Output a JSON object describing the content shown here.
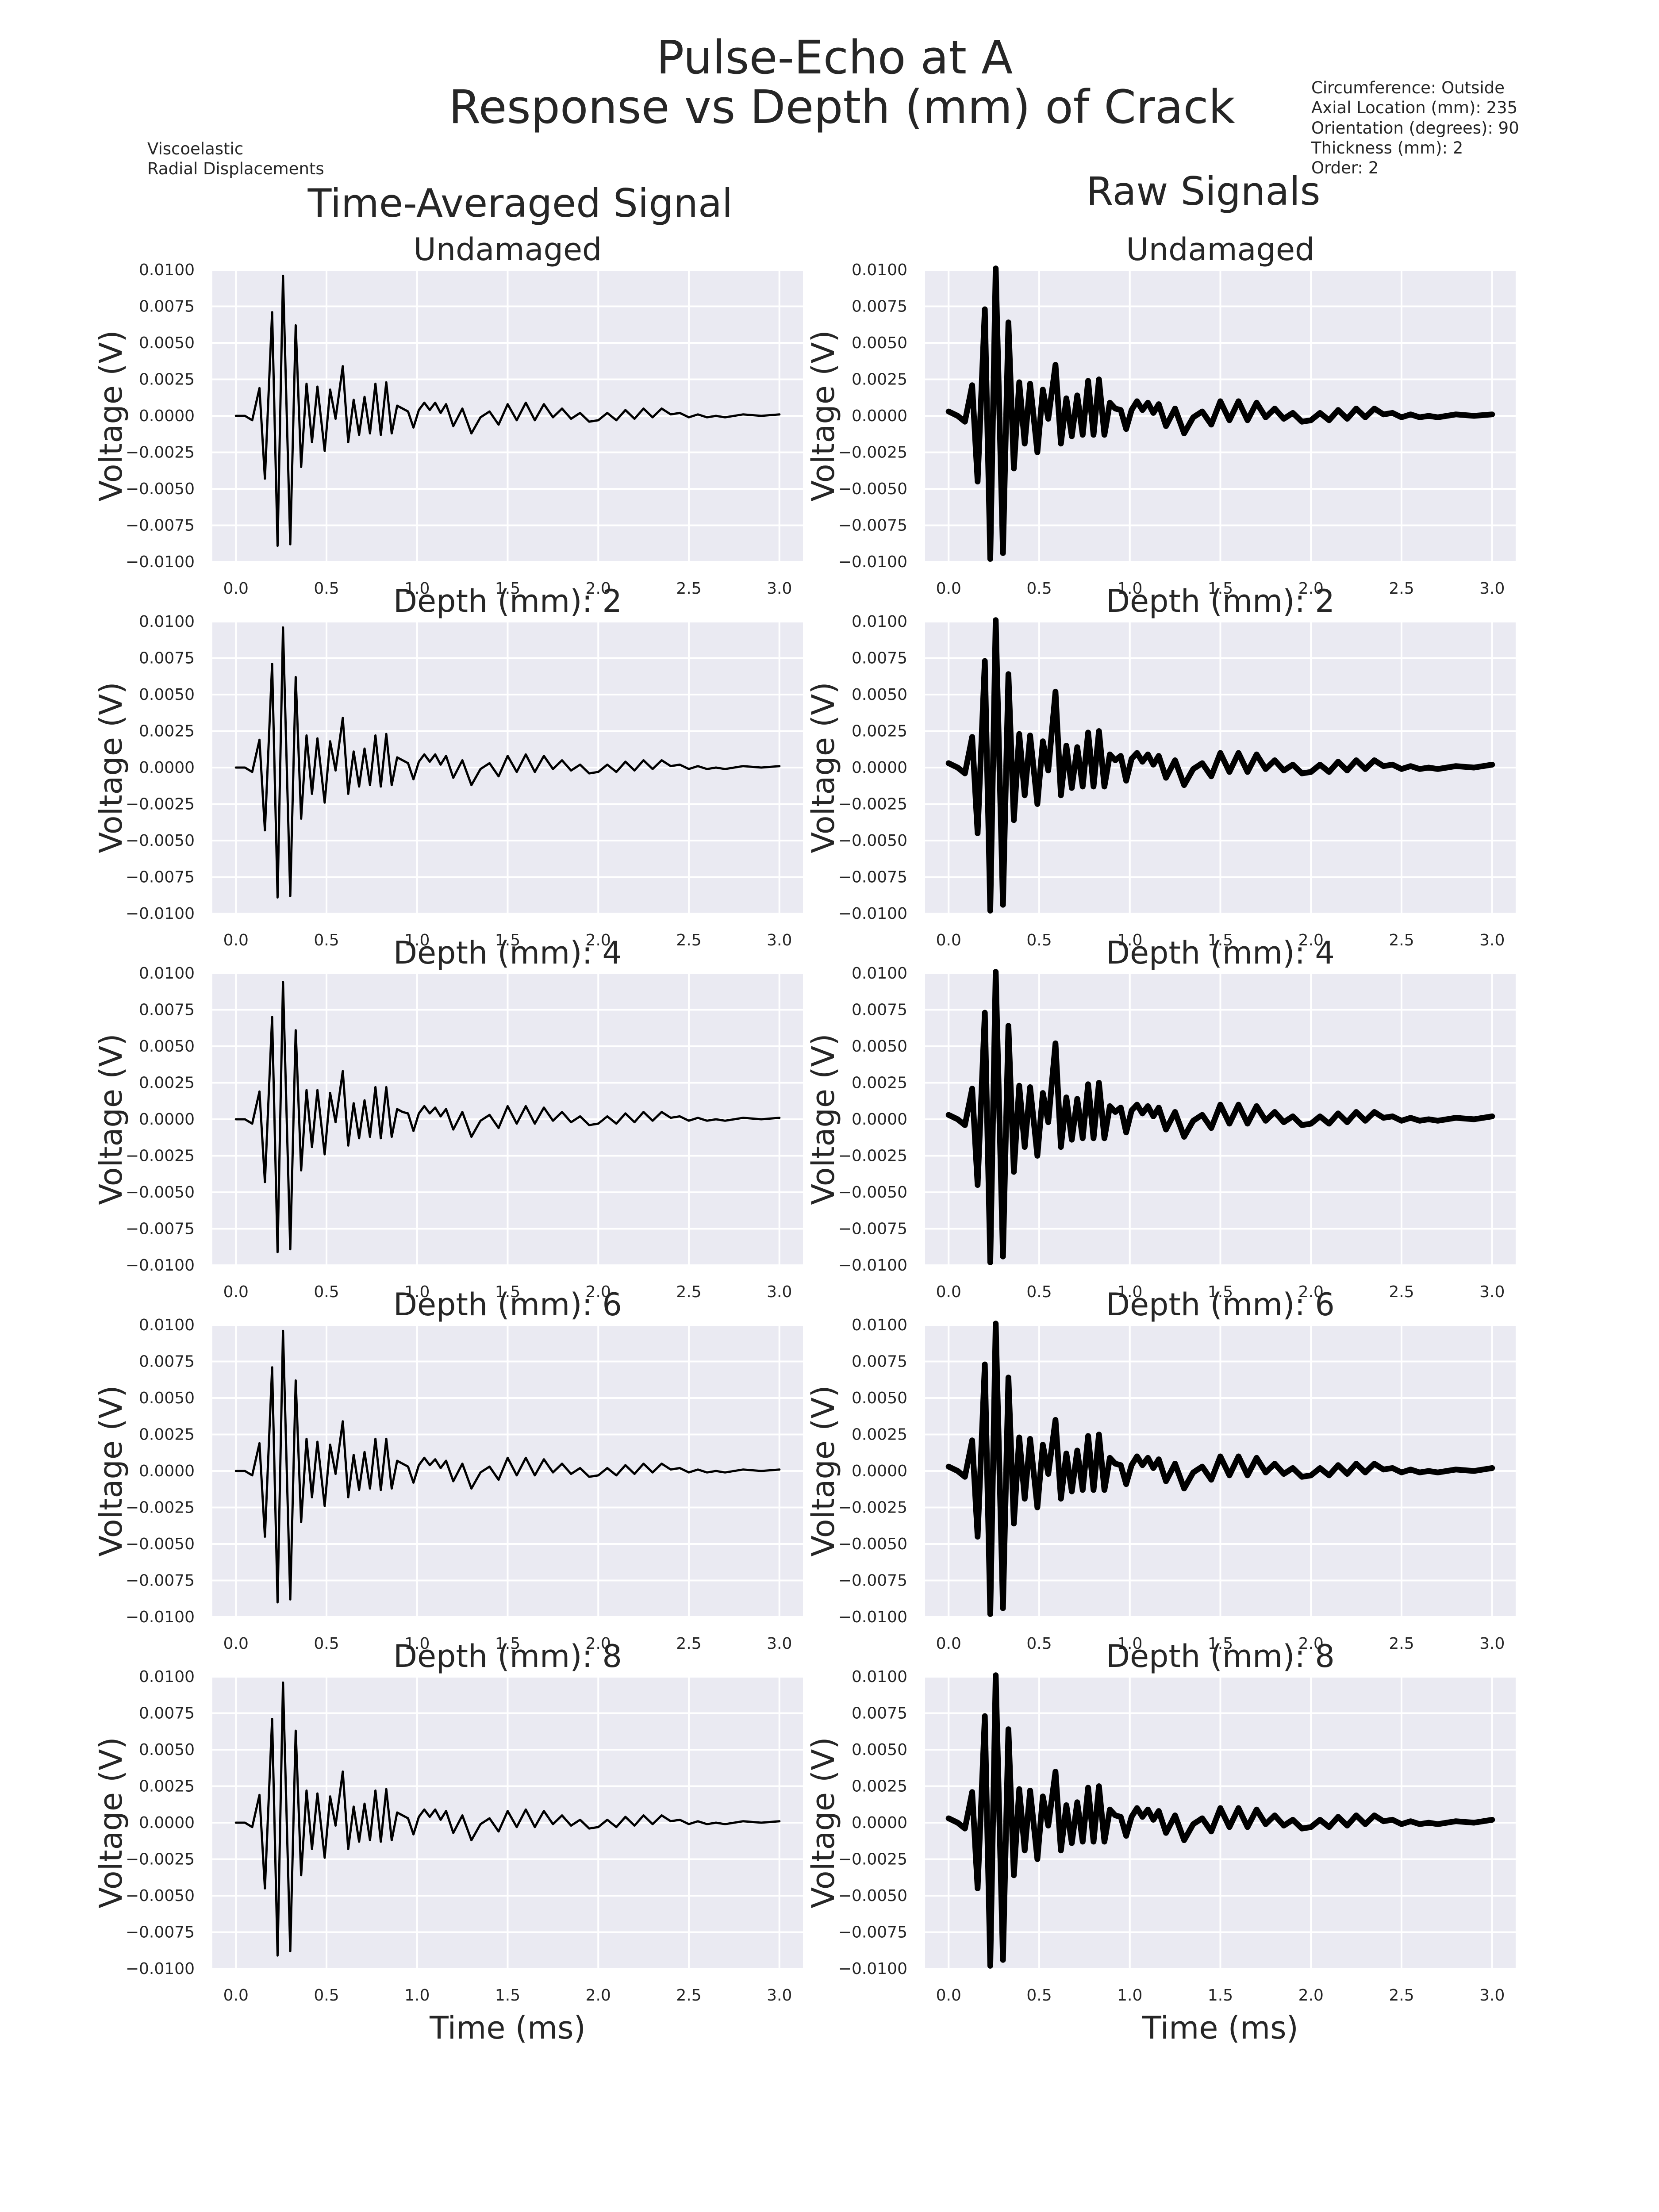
{
  "figure": {
    "title_line1": "Pulse-Echo at A",
    "title_line2": "Response vs Depth (mm) of Crack",
    "left_note": [
      "Viscoelastic",
      "Radial Displacements"
    ],
    "right_note": [
      "Circumference: Outside",
      "Axial Location (mm): 235",
      "Orientation (degrees): 90",
      "Thickness (mm): 2",
      "Order: 2"
    ],
    "columns": [
      {
        "title": "Time-Averaged Signal",
        "style": "thin"
      },
      {
        "title": "Raw Signals",
        "style": "thick"
      }
    ],
    "row_titles": [
      "Undamaged",
      "Depth (mm): 2",
      "Depth (mm): 4",
      "Depth (mm): 6",
      "Depth (mm): 8"
    ],
    "ylabel": "Voltage (V)",
    "xlabel": "Time (ms)",
    "x_ticks": [
      "0.0",
      "0.5",
      "1.0",
      "1.5",
      "2.0",
      "2.5",
      "3.0"
    ],
    "y_ticks": [
      "0.0100",
      "0.0075",
      "0.0050",
      "0.0025",
      "0.0000",
      "−0.0025",
      "−0.0050",
      "−0.0075",
      "−0.0100"
    ]
  },
  "chart_data": {
    "type": "line",
    "xlim": [
      -0.13,
      3.13
    ],
    "ylim": [
      -0.01,
      0.01
    ],
    "grid": true,
    "line_color": "#000000",
    "x": [
      0.0,
      0.05,
      0.09,
      0.13,
      0.16,
      0.2,
      0.23,
      0.26,
      0.3,
      0.33,
      0.36,
      0.39,
      0.42,
      0.45,
      0.49,
      0.52,
      0.55,
      0.59,
      0.62,
      0.65,
      0.68,
      0.71,
      0.74,
      0.77,
      0.8,
      0.83,
      0.86,
      0.89,
      0.92,
      0.95,
      0.98,
      1.01,
      1.04,
      1.07,
      1.1,
      1.13,
      1.16,
      1.2,
      1.25,
      1.3,
      1.35,
      1.4,
      1.45,
      1.5,
      1.55,
      1.6,
      1.65,
      1.7,
      1.75,
      1.8,
      1.85,
      1.9,
      1.95,
      2.0,
      2.05,
      2.1,
      2.15,
      2.2,
      2.25,
      2.3,
      2.35,
      2.4,
      2.45,
      2.5,
      2.55,
      2.6,
      2.65,
      2.7,
      2.8,
      2.9,
      3.0
    ],
    "series": [
      {
        "values": [
          0.0,
          0.0,
          -0.0003,
          0.0019,
          -0.0043,
          0.0071,
          -0.0089,
          0.0096,
          -0.0088,
          0.0062,
          -0.0035,
          0.0022,
          -0.0018,
          0.002,
          -0.0024,
          0.0018,
          -0.0002,
          0.0034,
          -0.0018,
          0.0011,
          -0.0013,
          0.0013,
          -0.0012,
          0.0022,
          -0.0013,
          0.0023,
          -0.0012,
          0.0007,
          0.0005,
          0.0003,
          -0.0008,
          0.0004,
          0.0009,
          0.0004,
          0.0009,
          0.0002,
          0.0008,
          -0.0007,
          0.0005,
          -0.0012,
          -0.0001,
          0.0003,
          -0.0006,
          0.0008,
          -0.0003,
          0.0009,
          -0.0003,
          0.0008,
          -0.0001,
          0.0005,
          -0.0002,
          0.0002,
          -0.0004,
          -0.0003,
          0.0002,
          -0.0003,
          0.0004,
          -0.0002,
          0.0005,
          -0.0001,
          0.0005,
          0.0001,
          0.0002,
          -0.0001,
          0.0001,
          -0.0001,
          0.0,
          -0.0001,
          0.0001,
          0.0,
          0.0001
        ]
      },
      {
        "values": [
          0.0,
          0.0,
          -0.0003,
          0.0019,
          -0.0043,
          0.0071,
          -0.0089,
          0.0096,
          -0.0088,
          0.0062,
          -0.0035,
          0.0022,
          -0.0018,
          0.002,
          -0.0024,
          0.0018,
          -0.0002,
          0.0034,
          -0.0018,
          0.0011,
          -0.0013,
          0.0013,
          -0.0012,
          0.0022,
          -0.0013,
          0.0023,
          -0.0012,
          0.0007,
          0.0005,
          0.0003,
          -0.0008,
          0.0004,
          0.0009,
          0.0004,
          0.0009,
          0.0002,
          0.0008,
          -0.0007,
          0.0005,
          -0.0012,
          -0.0001,
          0.0003,
          -0.0006,
          0.0008,
          -0.0003,
          0.0009,
          -0.0003,
          0.0008,
          -0.0001,
          0.0005,
          -0.0002,
          0.0002,
          -0.0004,
          -0.0003,
          0.0002,
          -0.0003,
          0.0004,
          -0.0002,
          0.0005,
          -0.0001,
          0.0005,
          0.0001,
          0.0002,
          -0.0001,
          0.0001,
          -0.0001,
          0.0,
          -0.0001,
          0.0001,
          0.0,
          0.0001
        ]
      },
      {
        "values": [
          0.0,
          0.0,
          -0.0003,
          0.0019,
          -0.0043,
          0.007,
          -0.0091,
          0.0094,
          -0.0089,
          0.0061,
          -0.0035,
          0.002,
          -0.0019,
          0.002,
          -0.0024,
          0.0018,
          -0.0002,
          0.0033,
          -0.0018,
          0.0011,
          -0.0013,
          0.0013,
          -0.0012,
          0.0022,
          -0.0013,
          0.0022,
          -0.0012,
          0.0007,
          0.0005,
          0.0004,
          -0.0008,
          0.0004,
          0.0009,
          0.0004,
          0.0008,
          0.0002,
          0.0007,
          -0.0007,
          0.0005,
          -0.0012,
          -0.0001,
          0.0003,
          -0.0006,
          0.0009,
          -0.0003,
          0.0009,
          -0.0003,
          0.0008,
          -0.0001,
          0.0005,
          -0.0002,
          0.0002,
          -0.0004,
          -0.0003,
          0.0002,
          -0.0003,
          0.0004,
          -0.0002,
          0.0005,
          -0.0001,
          0.0005,
          0.0001,
          0.0002,
          -0.0001,
          0.0001,
          -0.0001,
          0.0,
          -0.0001,
          0.0001,
          0.0,
          0.0001
        ]
      },
      {
        "values": [
          0.0,
          0.0,
          -0.0003,
          0.0019,
          -0.0045,
          0.0071,
          -0.009,
          0.0096,
          -0.0088,
          0.0062,
          -0.0035,
          0.0022,
          -0.0018,
          0.002,
          -0.0024,
          0.0018,
          -0.0002,
          0.0034,
          -0.0018,
          0.0011,
          -0.0013,
          0.0013,
          -0.0012,
          0.0022,
          -0.0013,
          0.0022,
          -0.0012,
          0.0007,
          0.0005,
          0.0003,
          -0.0008,
          0.0004,
          0.0009,
          0.0004,
          0.0008,
          0.0002,
          0.0007,
          -0.0007,
          0.0005,
          -0.0012,
          -0.0001,
          0.0003,
          -0.0006,
          0.0009,
          -0.0003,
          0.0009,
          -0.0003,
          0.0008,
          -0.0001,
          0.0005,
          -0.0002,
          0.0002,
          -0.0004,
          -0.0003,
          0.0002,
          -0.0003,
          0.0004,
          -0.0002,
          0.0005,
          -0.0001,
          0.0005,
          0.0001,
          0.0002,
          -0.0001,
          0.0001,
          -0.0001,
          0.0,
          -0.0001,
          0.0001,
          0.0,
          0.0001
        ]
      },
      {
        "values": [
          0.0,
          0.0,
          -0.0003,
          0.0019,
          -0.0045,
          0.0071,
          -0.0091,
          0.0096,
          -0.0088,
          0.0063,
          -0.0036,
          0.0022,
          -0.0018,
          0.002,
          -0.0024,
          0.0018,
          -0.0002,
          0.0035,
          -0.0018,
          0.0011,
          -0.0013,
          0.0013,
          -0.0012,
          0.0022,
          -0.0013,
          0.0023,
          -0.0012,
          0.0007,
          0.0005,
          0.0003,
          -0.0008,
          0.0004,
          0.0009,
          0.0004,
          0.0009,
          0.0002,
          0.0008,
          -0.0007,
          0.0005,
          -0.0012,
          -0.0001,
          0.0003,
          -0.0006,
          0.0008,
          -0.0003,
          0.0009,
          -0.0003,
          0.0008,
          -0.0001,
          0.0005,
          -0.0002,
          0.0002,
          -0.0004,
          -0.0003,
          0.0002,
          -0.0003,
          0.0004,
          -0.0002,
          0.0005,
          -0.0001,
          0.0005,
          0.0001,
          0.0002,
          -0.0001,
          0.0001,
          -0.0001,
          0.0,
          -0.0001,
          0.0001,
          0.0,
          0.0001
        ]
      },
      {
        "values": [
          0.0003,
          0.0,
          -0.0004,
          0.0021,
          -0.0045,
          0.0073,
          -0.0098,
          0.0101,
          -0.0094,
          0.0064,
          -0.0036,
          0.0023,
          -0.0019,
          0.0022,
          -0.0025,
          0.0018,
          -0.0002,
          0.0035,
          -0.0019,
          0.0012,
          -0.0014,
          0.0014,
          -0.0013,
          0.0024,
          -0.0013,
          0.0025,
          -0.0013,
          0.0009,
          0.0005,
          0.0004,
          -0.0009,
          0.0004,
          0.001,
          0.0004,
          0.0009,
          0.0002,
          0.0008,
          -0.0007,
          0.0005,
          -0.0012,
          -0.0001,
          0.0003,
          -0.0006,
          0.001,
          -0.0003,
          0.001,
          -0.0003,
          0.0009,
          -0.0001,
          0.0005,
          -0.0002,
          0.0002,
          -0.0004,
          -0.0003,
          0.0002,
          -0.0003,
          0.0004,
          -0.0002,
          0.0005,
          -0.0001,
          0.0005,
          0.0001,
          0.0002,
          -0.0001,
          0.0001,
          -0.0001,
          0.0,
          -0.0001,
          0.0001,
          0.0,
          0.0001
        ]
      },
      {
        "values": [
          0.0003,
          0.0,
          -0.0004,
          0.0021,
          -0.0045,
          0.0073,
          -0.0098,
          0.0101,
          -0.0094,
          0.0064,
          -0.0036,
          0.0023,
          -0.0019,
          0.0022,
          -0.0025,
          0.0018,
          -0.0002,
          0.0052,
          -0.0019,
          0.0015,
          -0.0014,
          0.0014,
          -0.0013,
          0.0024,
          -0.0013,
          0.0025,
          -0.0013,
          0.0009,
          0.0005,
          0.0008,
          -0.0009,
          0.0006,
          0.001,
          0.0004,
          0.0009,
          0.0002,
          0.0008,
          -0.0007,
          0.0005,
          -0.0012,
          -0.0001,
          0.0003,
          -0.0006,
          0.001,
          -0.0003,
          0.001,
          -0.0003,
          0.0009,
          -0.0001,
          0.0005,
          -0.0002,
          0.0002,
          -0.0004,
          -0.0003,
          0.0002,
          -0.0003,
          0.0004,
          -0.0002,
          0.0005,
          -0.0001,
          0.0005,
          0.0001,
          0.0002,
          -0.0001,
          0.0001,
          -0.0001,
          0.0,
          -0.0001,
          0.0001,
          0.0,
          0.0002
        ]
      },
      {
        "values": [
          0.0003,
          0.0,
          -0.0004,
          0.0021,
          -0.0045,
          0.0073,
          -0.0098,
          0.0101,
          -0.0094,
          0.0064,
          -0.0036,
          0.0023,
          -0.0019,
          0.0022,
          -0.0025,
          0.0018,
          -0.0002,
          0.0052,
          -0.0019,
          0.0015,
          -0.0014,
          0.0014,
          -0.0013,
          0.0024,
          -0.0013,
          0.0025,
          -0.0013,
          0.0009,
          0.0005,
          0.0008,
          -0.0009,
          0.0006,
          0.001,
          0.0004,
          0.0009,
          0.0002,
          0.0008,
          -0.0007,
          0.0005,
          -0.0012,
          -0.0001,
          0.0003,
          -0.0006,
          0.001,
          -0.0003,
          0.001,
          -0.0003,
          0.0009,
          -0.0001,
          0.0005,
          -0.0002,
          0.0002,
          -0.0004,
          -0.0003,
          0.0002,
          -0.0003,
          0.0004,
          -0.0002,
          0.0005,
          -0.0001,
          0.0005,
          0.0001,
          0.0002,
          -0.0001,
          0.0001,
          -0.0001,
          0.0,
          -0.0001,
          0.0001,
          0.0,
          0.0002
        ]
      },
      {
        "values": [
          0.0003,
          0.0,
          -0.0004,
          0.0021,
          -0.0045,
          0.0073,
          -0.0098,
          0.0101,
          -0.0094,
          0.0064,
          -0.0036,
          0.0023,
          -0.0019,
          0.0022,
          -0.0025,
          0.0018,
          -0.0002,
          0.0035,
          -0.0019,
          0.0012,
          -0.0014,
          0.0014,
          -0.0013,
          0.0024,
          -0.0013,
          0.0025,
          -0.0013,
          0.0009,
          0.0005,
          0.0004,
          -0.0009,
          0.0004,
          0.001,
          0.0004,
          0.0009,
          0.0002,
          0.0008,
          -0.0007,
          0.0005,
          -0.0012,
          -0.0001,
          0.0003,
          -0.0006,
          0.001,
          -0.0003,
          0.001,
          -0.0003,
          0.0009,
          -0.0001,
          0.0005,
          -0.0002,
          0.0002,
          -0.0004,
          -0.0003,
          0.0002,
          -0.0003,
          0.0004,
          -0.0002,
          0.0005,
          -0.0001,
          0.0005,
          0.0001,
          0.0002,
          -0.0001,
          0.0001,
          -0.0001,
          0.0,
          -0.0001,
          0.0001,
          0.0,
          0.0002
        ]
      },
      {
        "values": [
          0.0003,
          0.0,
          -0.0004,
          0.0021,
          -0.0045,
          0.0073,
          -0.0098,
          0.0101,
          -0.0094,
          0.0064,
          -0.0036,
          0.0023,
          -0.0019,
          0.0022,
          -0.0025,
          0.0018,
          -0.0002,
          0.0035,
          -0.0019,
          0.0012,
          -0.0014,
          0.0014,
          -0.0013,
          0.0024,
          -0.0013,
          0.0025,
          -0.0013,
          0.0009,
          0.0005,
          0.0004,
          -0.0009,
          0.0004,
          0.001,
          0.0004,
          0.0009,
          0.0002,
          0.0008,
          -0.0007,
          0.0005,
          -0.0012,
          -0.0001,
          0.0003,
          -0.0006,
          0.001,
          -0.0003,
          0.001,
          -0.0003,
          0.0009,
          -0.0001,
          0.0005,
          -0.0002,
          0.0002,
          -0.0004,
          -0.0003,
          0.0002,
          -0.0003,
          0.0004,
          -0.0002,
          0.0005,
          -0.0001,
          0.0005,
          0.0001,
          0.0002,
          -0.0001,
          0.0001,
          -0.0001,
          0.0,
          -0.0001,
          0.0001,
          0.0,
          0.0002
        ]
      }
    ]
  }
}
